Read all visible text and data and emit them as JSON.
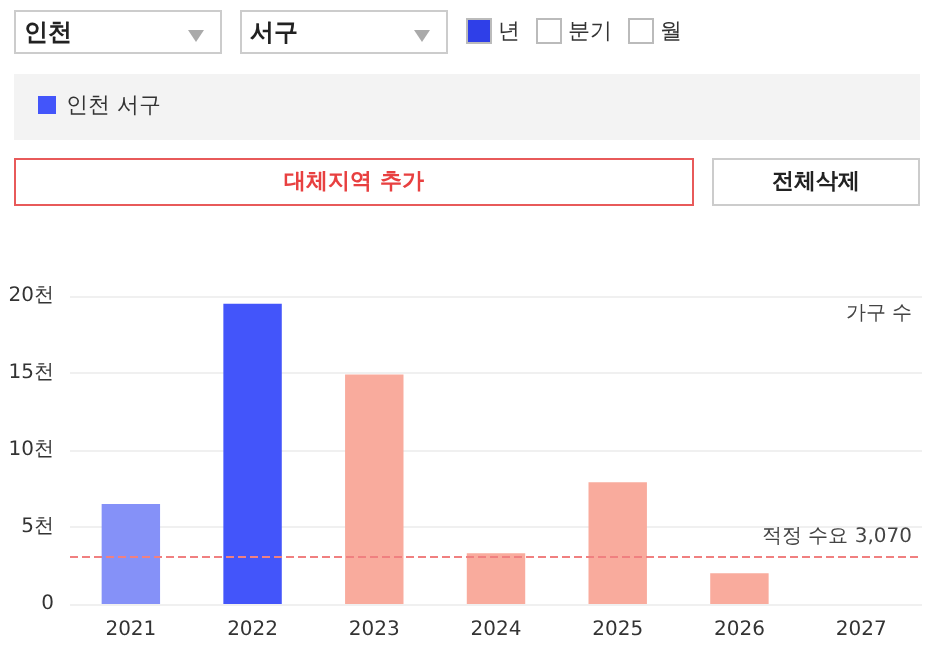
{
  "chart_data": {
    "type": "bar",
    "ylabel": "가구 수",
    "annotations": [
      "인천",
      "서구",
      "년",
      "분기",
      "월",
      "대체지역 추가",
      "전체삭제"
    ],
    "categories": [
      "2021",
      "2022",
      "2023",
      "2024",
      "2025",
      "2026",
      "2027"
    ],
    "series": [
      {
        "name": "인천 서구",
        "color": "#4355fa",
        "values": [
          6.5,
          19.5,
          14.9,
          3.3,
          7.9,
          2.0,
          null
        ],
        "colors": [
          "#8591f8",
          "#4355fa",
          "#f9ab9d",
          "#f9ab9d",
          "#f9ab9d",
          "#f9ab9d",
          null
        ]
      }
    ],
    "ylim": [
      0,
      20
    ],
    "yticks": [
      0,
      {
        "value": 5,
        "label": "5천"
      },
      {
        "value": 10,
        "label": "10천"
      },
      {
        "value": 15,
        "label": "15천"
      },
      {
        "value": 20,
        "label": "20천"
      }
    ],
    "grid": "y",
    "legend": "top left",
    "ref_lines": [
      {
        "axis": "y",
        "value": 3.07,
        "label": "적정 수요 3,070",
        "color": "#f08080",
        "line_style": "dashed"
      }
    ]
  }
}
